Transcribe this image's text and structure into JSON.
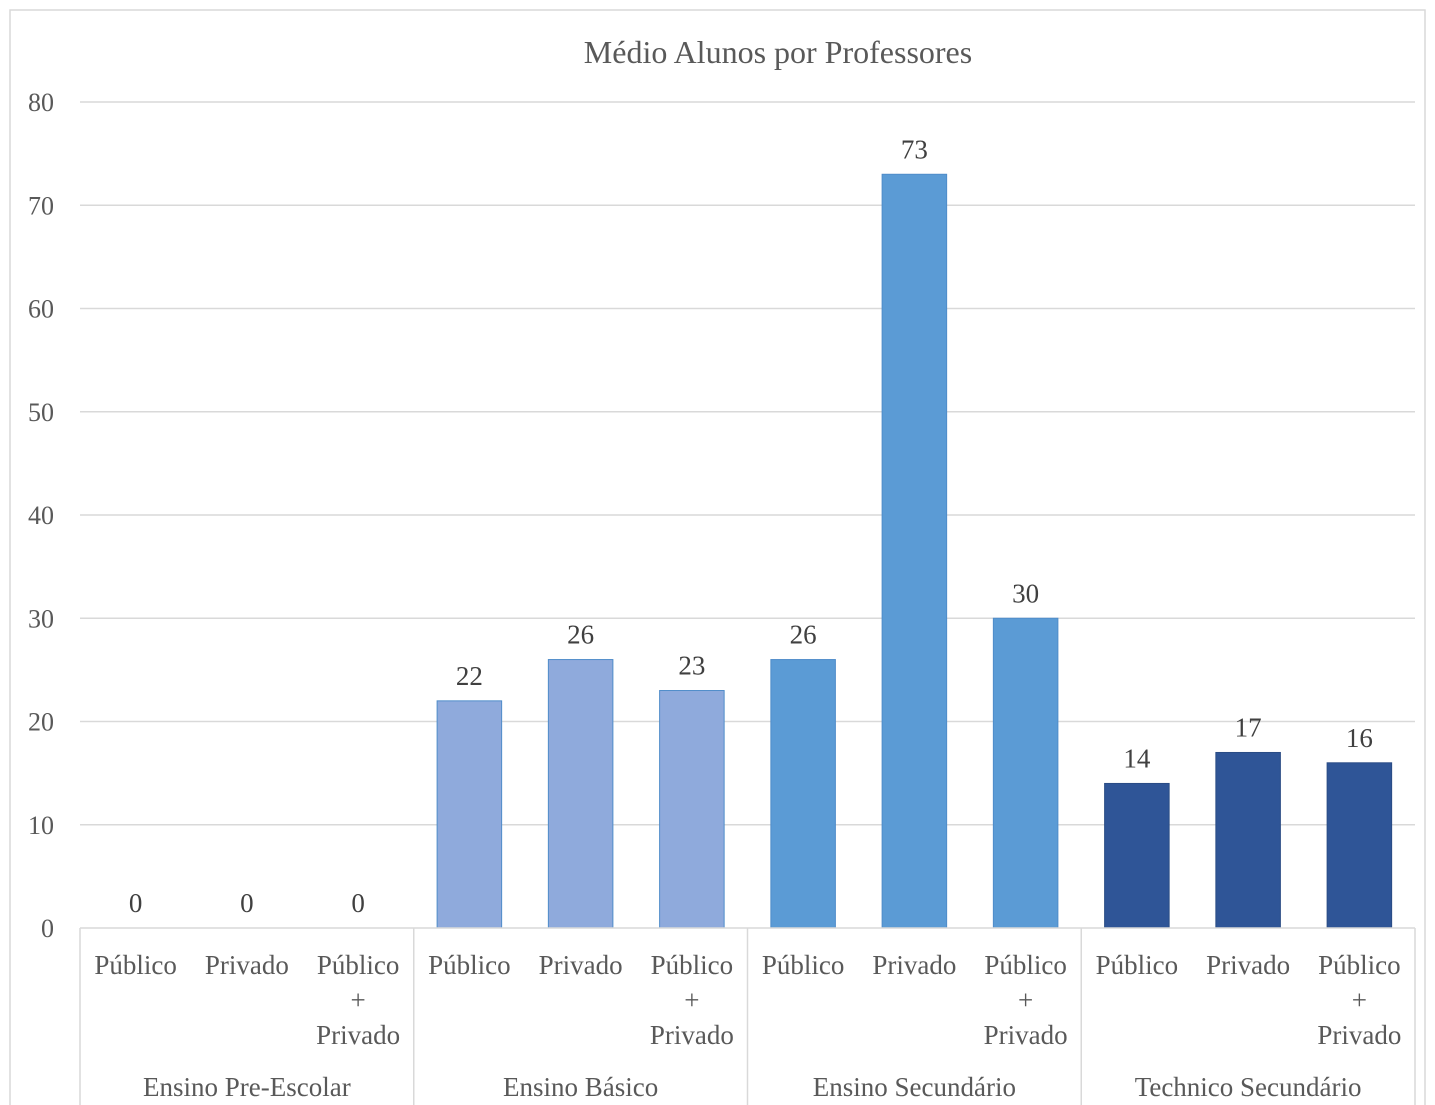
{
  "chart_data": {
    "type": "bar",
    "title": "Médio Alunos por Professores",
    "ylim": [
      0,
      80
    ],
    "yticks": [
      "0",
      "10",
      "20",
      "30",
      "40",
      "50",
      "60",
      "70",
      "80"
    ],
    "grid": true,
    "groups": [
      {
        "name": "Ensino Pre-Escolar",
        "color": "#8FAADC",
        "categories": [
          [
            "Público"
          ],
          [
            "Privado"
          ],
          [
            "Público",
            "+",
            "Privado"
          ]
        ],
        "values": [
          0,
          0,
          0
        ],
        "labels": [
          "0",
          "0",
          "0"
        ]
      },
      {
        "name": "Ensino Básico",
        "color": "#8FAADC",
        "categories": [
          [
            "Público"
          ],
          [
            "Privado"
          ],
          [
            "Público",
            "+",
            "Privado"
          ]
        ],
        "values": [
          22,
          26,
          23
        ],
        "labels": [
          "22",
          "26",
          "23"
        ]
      },
      {
        "name": "Ensino Secundário",
        "color": "#5B9BD5",
        "categories": [
          [
            "Público"
          ],
          [
            "Privado"
          ],
          [
            "Público",
            "+",
            "Privado"
          ]
        ],
        "values": [
          26,
          73,
          30
        ],
        "labels": [
          "26",
          "73",
          "30"
        ]
      },
      {
        "name": "Technico Secundário",
        "color": "#2F5597",
        "categories": [
          [
            "Público"
          ],
          [
            "Privado"
          ],
          [
            "Público",
            "+",
            "Privado"
          ]
        ],
        "values": [
          14,
          17,
          16
        ],
        "labels": [
          "14",
          "17",
          "16"
        ]
      }
    ]
  }
}
